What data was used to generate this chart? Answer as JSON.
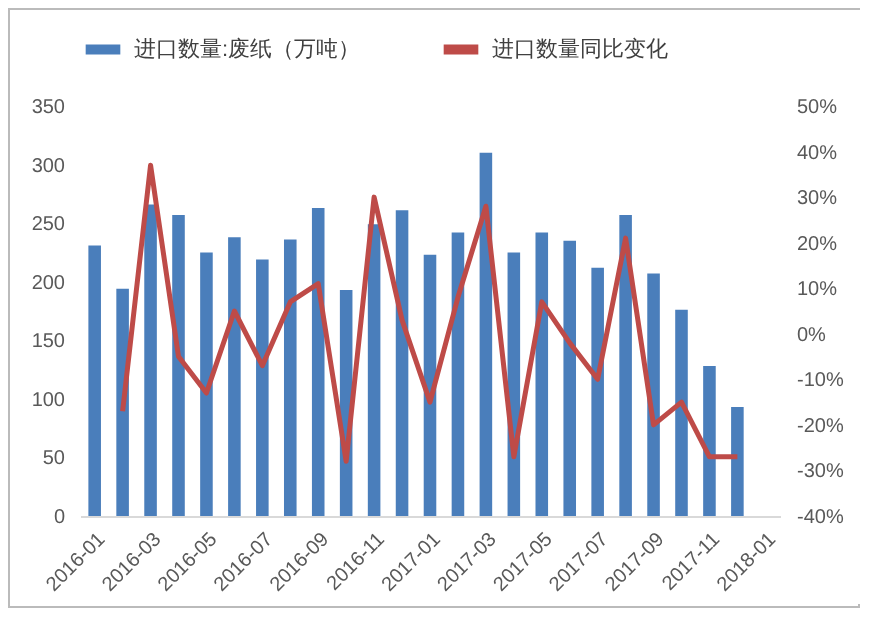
{
  "chart_data": {
    "type": "bar",
    "categories": [
      "2016-01",
      null,
      "2016-03",
      null,
      "2016-05",
      null,
      "2016-07",
      null,
      "2016-09",
      null,
      "2016-11",
      null,
      "2017-01",
      null,
      "2017-03",
      null,
      "2017-05",
      null,
      "2017-07",
      null,
      "2017-09",
      null,
      "2017-11",
      null,
      "2018-01"
    ],
    "series": [
      {
        "name": "进口数量:废纸（万吨）",
        "color": "#4a7ebb",
        "values": [
          231,
          194,
          266,
          257,
          225,
          238,
          219,
          236,
          263,
          193,
          249,
          261,
          223,
          242,
          310,
          225,
          242,
          235,
          212,
          257,
          207,
          176,
          128,
          93,
          null
        ]
      },
      {
        "name": "进口数量同比变化",
        "type": "line",
        "axis": "y2",
        "color": "#be4b48",
        "values": [
          null,
          -17,
          37,
          -5,
          -13,
          5,
          -7,
          7,
          11,
          -28,
          30,
          3,
          -15,
          8,
          28,
          -27,
          7,
          -2,
          -10,
          21,
          -20,
          -15,
          -27,
          -27,
          null
        ]
      }
    ],
    "ylim": [
      0,
      350
    ],
    "yticks": [
      0,
      50,
      100,
      150,
      200,
      250,
      300,
      350
    ],
    "y2lim": [
      -40,
      50
    ],
    "y2ticks": [
      {
        "value": -40,
        "label": "-40%"
      },
      {
        "value": -30,
        "label": "-30%"
      },
      {
        "value": -20,
        "label": "-20%"
      },
      {
        "value": -10,
        "label": "-10%"
      },
      {
        "value": 0,
        "label": "0%"
      },
      {
        "value": 10,
        "label": "10%"
      },
      {
        "value": 20,
        "label": "20%"
      },
      {
        "value": 30,
        "label": "30%"
      },
      {
        "value": 40,
        "label": "40%"
      },
      {
        "value": 50,
        "label": "50%"
      }
    ],
    "grid": false,
    "legend": "top"
  }
}
